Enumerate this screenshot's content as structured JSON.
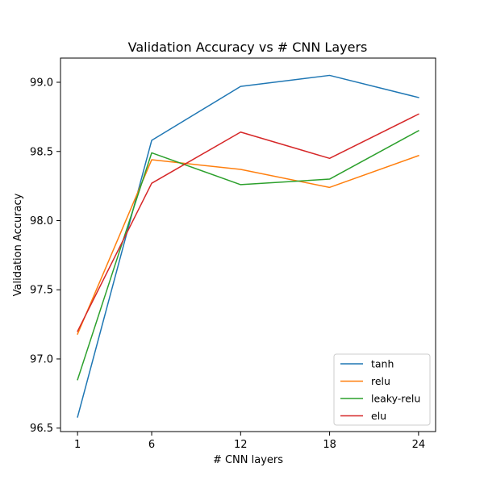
{
  "chart_data": {
    "type": "line",
    "title": "Validation Accuracy vs # CNN Layers",
    "xlabel": "# CNN layers",
    "ylabel": "Validation Accuracy",
    "x": [
      1,
      6,
      12,
      18,
      24
    ],
    "x_ticks": [
      "1",
      "6",
      "12",
      "18",
      "24"
    ],
    "y_ticks": [
      "96.5",
      "97.0",
      "97.5",
      "98.0",
      "98.5",
      "99.0"
    ],
    "xlim": [
      -0.15,
      25.15
    ],
    "ylim": [
      96.475,
      99.175
    ],
    "grid": false,
    "legend_position": "lower-right",
    "series": [
      {
        "name": "tanh",
        "color": "#1f77b4",
        "values": [
          96.58,
          98.58,
          98.97,
          99.05,
          98.89
        ]
      },
      {
        "name": "relu",
        "color": "#ff7f0e",
        "values": [
          97.18,
          98.44,
          98.37,
          98.24,
          98.47
        ]
      },
      {
        "name": "leaky-relu",
        "color": "#2ca02c",
        "values": [
          96.85,
          98.49,
          98.26,
          98.3,
          98.65
        ]
      },
      {
        "name": "elu",
        "color": "#d62728",
        "values": [
          97.2,
          98.27,
          98.64,
          98.45,
          98.77
        ]
      }
    ]
  }
}
